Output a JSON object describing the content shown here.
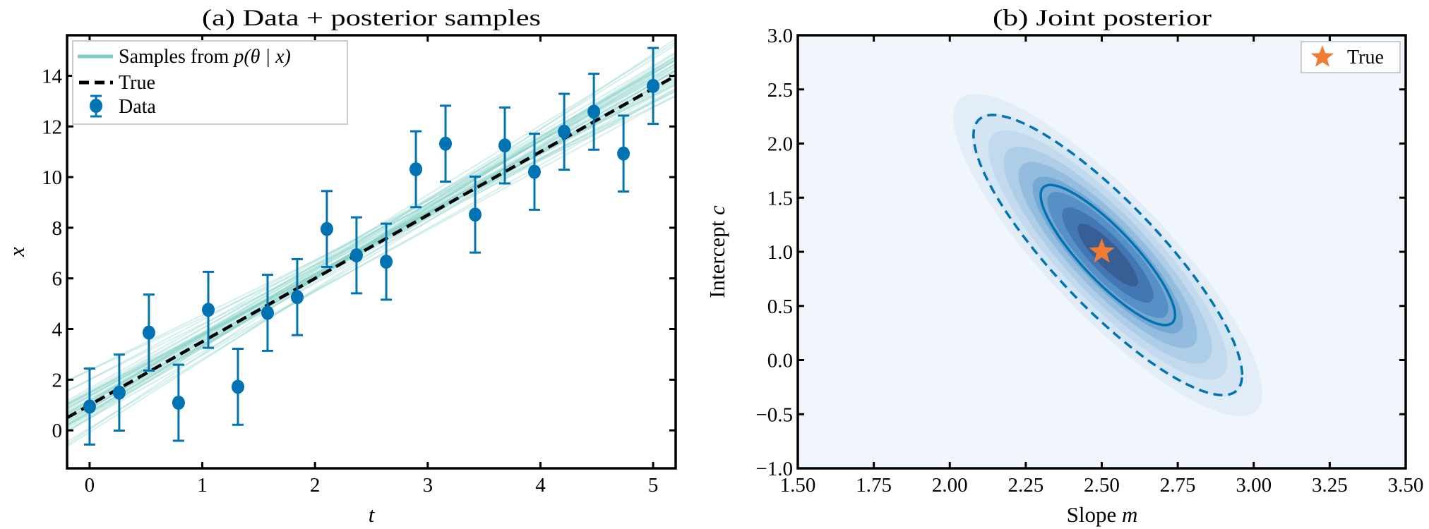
{
  "chart_data": [
    {
      "type": "scatter",
      "title": "(a) Data + posterior samples",
      "xlabel": "t",
      "ylabel": "x",
      "xlim": [
        -0.2,
        5.2
      ],
      "ylim": [
        -1.5,
        15.6
      ],
      "x_ticks": [
        0,
        1,
        2,
        3,
        4,
        5
      ],
      "x_tick_labels": [
        "0",
        "1",
        "2",
        "3",
        "4",
        "5"
      ],
      "y_ticks": [
        0,
        2,
        4,
        6,
        8,
        10,
        12,
        14
      ],
      "y_tick_labels": [
        "0",
        "2",
        "4",
        "6",
        "8",
        "10",
        "12",
        "14"
      ],
      "grid": false,
      "legend": {
        "placement": "top-left",
        "entries": [
          {
            "label_pre": "Samples from ",
            "label_math": "p(θ | x)",
            "style": "line",
            "color": "#7fcdc4"
          },
          {
            "label_pre": "True",
            "label_math": "",
            "style": "dashed",
            "color": "#000000"
          },
          {
            "label_pre": "Data",
            "label_math": "",
            "style": "errorbar",
            "color": "#0173b2"
          }
        ]
      },
      "series": [
        {
          "name": "Data",
          "color": "#0173b2",
          "x": [
            0,
            0.263,
            0.526,
            0.789,
            1.053,
            1.316,
            1.579,
            1.842,
            2.105,
            2.368,
            2.632,
            2.895,
            3.158,
            3.421,
            3.684,
            3.947,
            4.211,
            4.474,
            4.737,
            5.0
          ],
          "y": [
            0.94,
            1.49,
            3.86,
            1.09,
            4.76,
            1.72,
            4.64,
            5.26,
            7.95,
            6.91,
            6.66,
            10.31,
            11.32,
            8.52,
            11.25,
            10.21,
            11.79,
            12.58,
            10.93,
            13.6
          ],
          "yerr": 1.5
        },
        {
          "name": "True",
          "color": "#000000",
          "slope": 2.5,
          "intercept": 1.0
        },
        {
          "name": "Samples from p(θ | x)",
          "color": "#7fcdc4",
          "n_samples": 40
        }
      ]
    },
    {
      "type": "contour",
      "title": "(b) Joint posterior",
      "xlabel_text": "Slope",
      "xlabel_math": "m",
      "ylabel_text": "Intercept",
      "ylabel_math": "c",
      "xlim": [
        1.5,
        3.5
      ],
      "ylim": [
        -1.0,
        3.0
      ],
      "x_ticks": [
        1.5,
        1.75,
        2.0,
        2.25,
        2.5,
        2.75,
        3.0,
        3.25,
        3.5
      ],
      "x_tick_labels": [
        "1.50",
        "1.75",
        "2.00",
        "2.25",
        "2.50",
        "2.75",
        "3.00",
        "3.25",
        "3.50"
      ],
      "y_ticks": [
        -1.0,
        -0.5,
        0.0,
        0.5,
        1.0,
        1.5,
        2.0,
        2.5,
        3.0
      ],
      "y_tick_labels": [
        "−1.0",
        "−0.5",
        "0.0",
        "0.5",
        "1.0",
        "1.5",
        "2.0",
        "2.5",
        "3.0"
      ],
      "grid": false,
      "colormap": "Blues",
      "posterior": {
        "mean_m": 2.52,
        "mean_c": 0.97,
        "sd_m": 0.221,
        "sd_c": 0.647,
        "corr": -0.855
      },
      "contour_lines": [
        {
          "sigma": 1,
          "style": "solid",
          "color": "#0173b2"
        },
        {
          "sigma": 2,
          "style": "dashed",
          "color": "#0173b2"
        }
      ],
      "true_point": {
        "m": 2.5,
        "c": 1.0,
        "marker": "star",
        "color": "#f07b33"
      },
      "legend": {
        "placement": "top-right",
        "entries": [
          {
            "label": "True",
            "marker": "star",
            "color": "#f07b33"
          }
        ]
      }
    }
  ]
}
